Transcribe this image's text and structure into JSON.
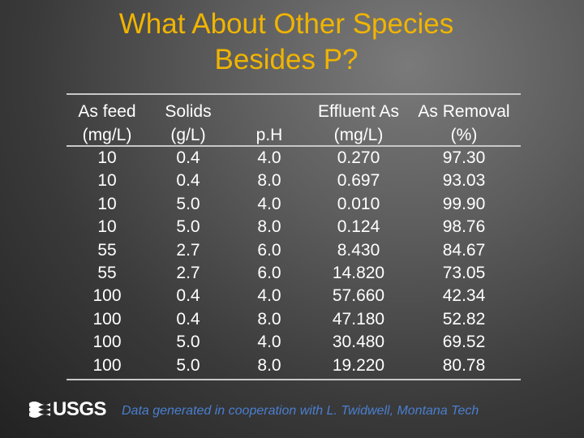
{
  "title_lines": [
    "What About Other Species",
    "Besides P?"
  ],
  "table": {
    "headers": [
      {
        "line1": "As feed",
        "line2": "(mg/L)"
      },
      {
        "line1": "Solids",
        "line2": "(g/L)"
      },
      {
        "line1": "",
        "line2": "p.H"
      },
      {
        "line1": "Effluent As",
        "line2": "(mg/L)"
      },
      {
        "line1": "As Removal",
        "line2": "(%)"
      }
    ],
    "rows": [
      [
        "10",
        "0.4",
        "4.0",
        "0.270",
        "97.30"
      ],
      [
        "10",
        "0.4",
        "8.0",
        "0.697",
        "93.03"
      ],
      [
        "10",
        "5.0",
        "4.0",
        "0.010",
        "99.90"
      ],
      [
        "10",
        "5.0",
        "8.0",
        "0.124",
        "98.76"
      ],
      [
        "55",
        "2.7",
        "6.0",
        "8.430",
        "84.67"
      ],
      [
        "55",
        "2.7",
        "6.0",
        "14.820",
        "73.05"
      ],
      [
        "100",
        "0.4",
        "4.0",
        "57.660",
        "42.34"
      ],
      [
        "100",
        "0.4",
        "8.0",
        "47.180",
        "52.82"
      ],
      [
        "100",
        "5.0",
        "4.0",
        "30.480",
        "69.52"
      ],
      [
        "100",
        "5.0",
        "8.0",
        "19.220",
        "80.78"
      ]
    ]
  },
  "logo": {
    "text": "USGS",
    "icon": "usgs-wave-icon"
  },
  "footer_text": "Data generated in cooperation with L. Twidwell, Montana Tech",
  "colors": {
    "title": "#f0b400",
    "footer": "#4a7fd0",
    "text": "#ffffff",
    "rule": "#c8c8c8"
  }
}
